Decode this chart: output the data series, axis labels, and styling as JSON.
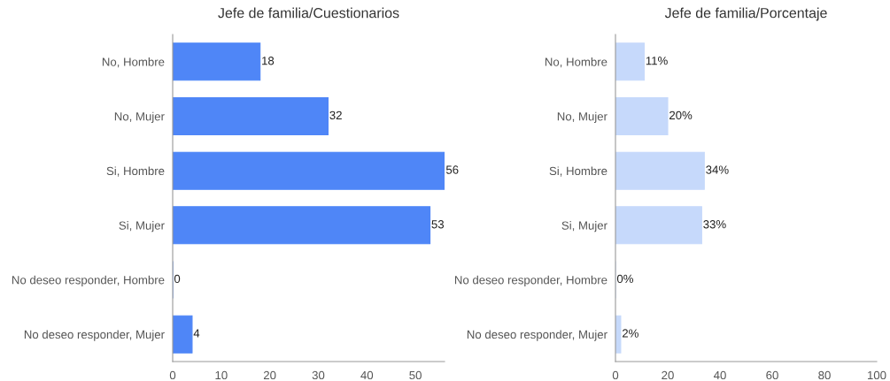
{
  "chart_data": [
    {
      "type": "bar",
      "orientation": "horizontal",
      "title": "Jefe de familia/Cuestionarios",
      "categories": [
        "No, Hombre",
        "No, Mujer",
        "Si, Hombre",
        "Si, Mujer",
        "No deseo responder, Hombre",
        "No deseo responder, Mujer"
      ],
      "values": [
        18,
        32,
        56,
        53,
        0,
        4
      ],
      "color": "#4f86f7",
      "xlim": [
        0,
        56
      ],
      "xticks": [
        0,
        10,
        20,
        30,
        40,
        50
      ],
      "data_labels": true,
      "grid": false,
      "legend": false
    },
    {
      "type": "bar",
      "orientation": "horizontal",
      "title": "Jefe de familia/Porcentaje",
      "categories": [
        "No, Hombre",
        "No, Mujer",
        "Si, Hombre",
        "Si, Mujer",
        "No deseo responder, Hombre",
        "No deseo responder, Mujer"
      ],
      "values": [
        11,
        20,
        34,
        33,
        0,
        2
      ],
      "value_labels": [
        "11%",
        "20%",
        "34%",
        "33%",
        "0%",
        "2%"
      ],
      "color": "#c6d9fb",
      "xlim": [
        0,
        100
      ],
      "xticks": [
        0,
        20,
        40,
        60,
        80,
        100
      ],
      "grid": false,
      "legend": false
    }
  ]
}
